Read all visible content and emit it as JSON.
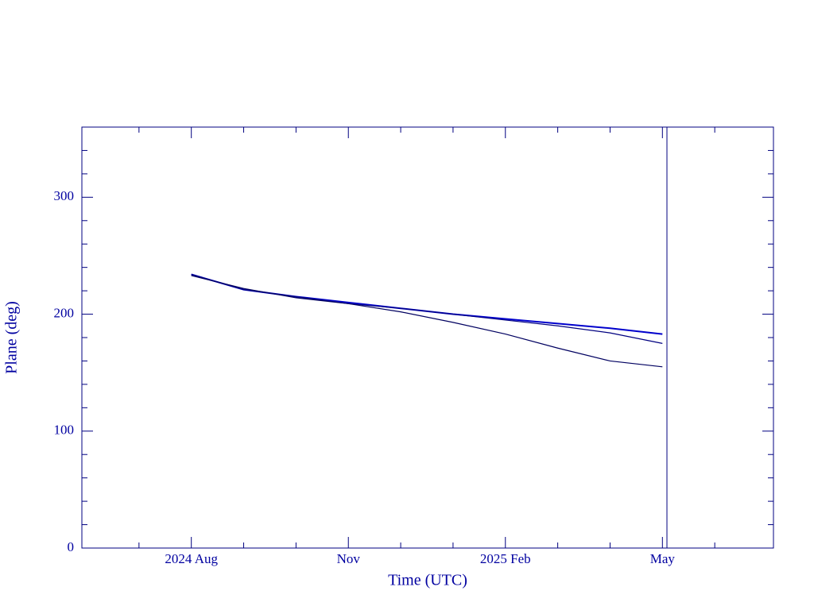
{
  "chart_data": {
    "type": "line",
    "x_label": "Time (UTC)",
    "y_label": "Plane (deg)",
    "x": [
      "2024-08",
      "2024-09",
      "2024-10",
      "2024-11",
      "2024-12",
      "2025-01",
      "2025-02",
      "2025-03",
      "2025-04",
      "2025-05"
    ],
    "series": [
      {
        "color": "#0000cc",
        "values": [
          234,
          221,
          215,
          210,
          205,
          200,
          196,
          192,
          188,
          183
        ]
      },
      {
        "color": "#000080",
        "values": [
          234,
          221,
          215,
          209,
          205,
          200,
          195,
          190,
          184,
          175
        ]
      },
      {
        "color": "#000060",
        "values": [
          233,
          222,
          214,
          209,
          202,
          193,
          183,
          171,
          160,
          155
        ]
      }
    ],
    "xlim": [
      "2024-06",
      "2025-07"
    ],
    "xticks": [
      {
        "value": "2024-08",
        "label": "2024 Aug"
      },
      {
        "value": "2024-11",
        "label": "Nov"
      },
      {
        "value": "2025-02",
        "label": "2025 Feb"
      },
      {
        "value": "2025-05",
        "label": "May"
      }
    ],
    "xminor": [
      "2024-07",
      "2024-09",
      "2024-10",
      "2024-12",
      "2025-01",
      "2025-03",
      "2025-04",
      "2025-06"
    ],
    "ylim": [
      0,
      360
    ],
    "yticks": [
      0,
      100,
      200,
      300
    ],
    "yminor": [
      20,
      40,
      60,
      80,
      120,
      140,
      160,
      180,
      220,
      240,
      260,
      280,
      320,
      340
    ]
  }
}
